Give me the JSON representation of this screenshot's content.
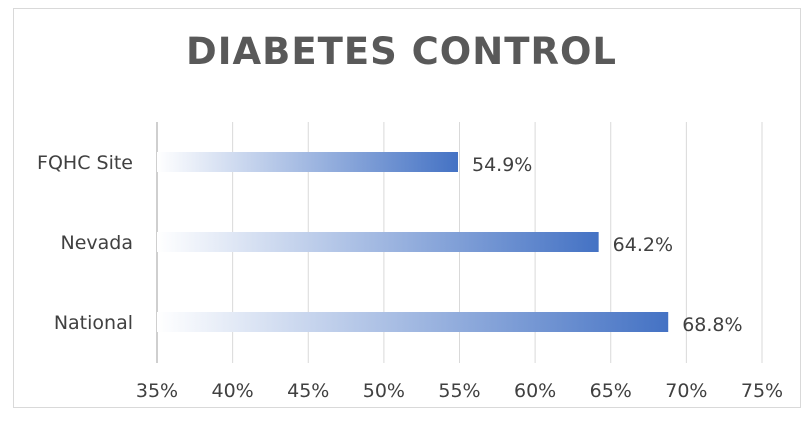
{
  "chart_data": {
    "type": "bar",
    "orientation": "horizontal",
    "title": "DIABETES CONTROL",
    "categories": [
      "FQHC Site",
      "Nevada",
      "National"
    ],
    "values": [
      54.9,
      64.2,
      68.8
    ],
    "data_labels": [
      "54.9%",
      "64.2%",
      "68.8%"
    ],
    "xlim": [
      35,
      75
    ],
    "x_ticks": [
      35,
      40,
      45,
      50,
      55,
      60,
      65,
      70,
      75
    ],
    "x_tick_labels": [
      "35%",
      "40%",
      "45%",
      "50%",
      "55%",
      "60%",
      "65%",
      "70%",
      "75%"
    ],
    "grid": true,
    "legend": "none",
    "bar_color_start": "#ffffff",
    "bar_color_end": "#4472c4",
    "grid_color": "#d9d9d9"
  }
}
